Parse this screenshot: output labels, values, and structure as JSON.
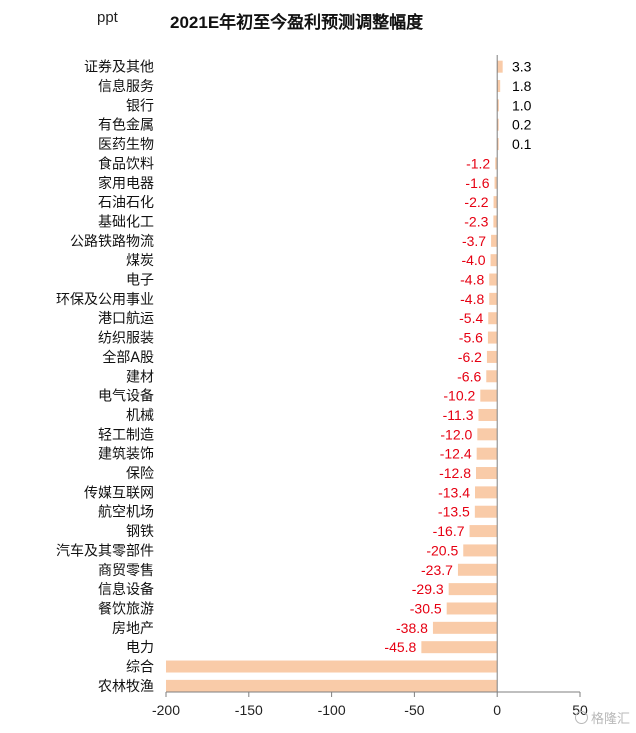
{
  "chart_data": {
    "type": "bar",
    "orientation": "horizontal",
    "title": "2021E年初至今盈利预测调整幅度",
    "unit_label": "ppt",
    "xlim": [
      -200,
      50
    ],
    "xticks": [
      -200,
      -150,
      -100,
      -50,
      0,
      50
    ],
    "grid": false,
    "bar_color": "#f9cba8",
    "positive_label_color": "#000000",
    "negative_label_color": "#e60012",
    "categories": [
      "证券及其他",
      "信息服务",
      "银行",
      "有色金属",
      "医药生物",
      "食品饮料",
      "家用电器",
      "石油石化",
      "基础化工",
      "公路铁路物流",
      "煤炭",
      "电子",
      "环保及公用事业",
      "港口航运",
      "纺织服装",
      "全部A股",
      "建材",
      "电气设备",
      "机械",
      "轻工制造",
      "建筑装饰",
      "保险",
      "传媒互联网",
      "航空机场",
      "钢铁",
      "汽车及其零部件",
      "商贸零售",
      "信息设备",
      "餐饮旅游",
      "房地产",
      "电力",
      "综合",
      "农林牧渔"
    ],
    "values": [
      3.3,
      1.8,
      1.0,
      0.2,
      0.1,
      -1.2,
      -1.6,
      -2.2,
      -2.3,
      -3.7,
      -4.0,
      -4.8,
      -4.8,
      -5.4,
      -5.6,
      -6.2,
      -6.6,
      -10.2,
      -11.3,
      -12.0,
      -12.4,
      -12.8,
      -13.4,
      -13.5,
      -16.7,
      -20.5,
      -23.7,
      -29.3,
      -30.5,
      -38.8,
      -45.8,
      -200,
      -200
    ],
    "data_labels": [
      "3.3",
      "1.8",
      "1.0",
      "0.2",
      "0.1",
      "-1.2",
      "-1.6",
      "-2.2",
      "-2.3",
      "-3.7",
      "-4.0",
      "-4.8",
      "-4.8",
      "-5.4",
      "-5.6",
      "-6.2",
      "-6.6",
      "-10.2",
      "-11.3",
      "-12.0",
      "-12.4",
      "-12.8",
      "-13.4",
      "-13.5",
      "-16.7",
      "-20.5",
      "-23.7",
      "-29.3",
      "-30.5",
      "-38.8",
      "-45.8",
      "",
      ""
    ]
  },
  "watermark": {
    "text": "格隆汇"
  }
}
